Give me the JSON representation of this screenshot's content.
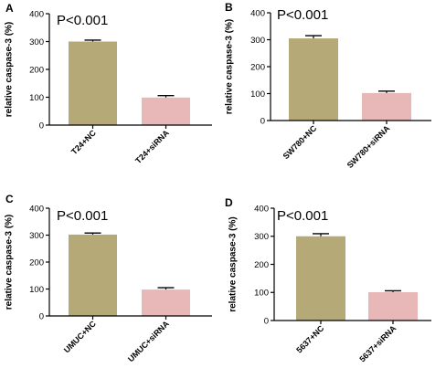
{
  "chart_data": [
    {
      "type": "bar",
      "panel": "A",
      "annotation": "P<0.001",
      "ylabel": "relative caspase-3 (%)",
      "ylim": [
        0,
        400
      ],
      "yticks": [
        0,
        100,
        200,
        300,
        400
      ],
      "categories": [
        "T24+NC",
        "T24+siRNA"
      ],
      "values": [
        300,
        99
      ],
      "errors": [
        5,
        7
      ],
      "colors": [
        "#b5a978",
        "#e8b8b8"
      ]
    },
    {
      "type": "bar",
      "panel": "B",
      "annotation": "P<0.001",
      "ylabel": "relative caspase-3 (%)",
      "ylim": [
        0,
        400
      ],
      "yticks": [
        0,
        100,
        200,
        300,
        400
      ],
      "categories": [
        "SW780+NC",
        "SW780+siRNA"
      ],
      "values": [
        305,
        102
      ],
      "errors": [
        10,
        7
      ],
      "colors": [
        "#b5a978",
        "#e8b8b8"
      ]
    },
    {
      "type": "bar",
      "panel": "C",
      "annotation": "P<0.001",
      "ylabel": "relative caspase-3 (%)",
      "ylim": [
        0,
        400
      ],
      "yticks": [
        0,
        100,
        200,
        300,
        400
      ],
      "categories": [
        "UMUC+NC",
        "UMUC+siRNA"
      ],
      "values": [
        302,
        98
      ],
      "errors": [
        6,
        7
      ],
      "colors": [
        "#b5a978",
        "#e8b8b8"
      ]
    },
    {
      "type": "bar",
      "panel": "D",
      "annotation": "P<0.001",
      "ylabel": "relative caspase-3 (%)",
      "ylim": [
        0,
        400
      ],
      "yticks": [
        0,
        100,
        200,
        300,
        400
      ],
      "categories": [
        "5637+NC",
        "5637+siRNA"
      ],
      "values": [
        300,
        101
      ],
      "errors": [
        9,
        5
      ],
      "colors": [
        "#b5a978",
        "#e8b8b8"
      ]
    }
  ]
}
